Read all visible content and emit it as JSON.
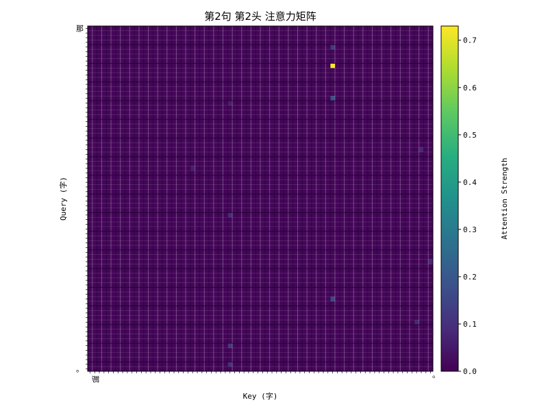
{
  "chart_data": {
    "type": "heatmap",
    "title": "第2句 第2头 注意力矩阵",
    "xlabel": "Key (字)",
    "ylabel": "Query (字)",
    "colorbar": {
      "label": "Attention Strength",
      "colormap": "viridis",
      "range": [
        0.0,
        0.73
      ],
      "ticks": [
        0.0,
        0.1,
        0.2,
        0.3,
        0.4,
        0.5,
        0.6,
        0.7
      ]
    },
    "matrix_size": 74,
    "first_token": "那",
    "last_token": "。",
    "typical_value": 0.01,
    "max_value": 0.73,
    "highlights": [
      {
        "row": 8,
        "col": 52,
        "value": 0.73
      },
      {
        "row": 15,
        "col": 52,
        "value": 0.18
      },
      {
        "row": 4,
        "col": 52,
        "value": 0.12
      },
      {
        "row": 58,
        "col": 52,
        "value": 0.15
      },
      {
        "row": 68,
        "col": 30,
        "value": 0.12
      },
      {
        "row": 72,
        "col": 30,
        "value": 0.1
      },
      {
        "row": 40,
        "col": 30,
        "value": 0.09
      },
      {
        "row": 63,
        "col": 70,
        "value": 0.08
      },
      {
        "row": 26,
        "col": 71,
        "value": 0.08
      },
      {
        "row": 30,
        "col": 22,
        "value": 0.06
      },
      {
        "row": 50,
        "col": 73,
        "value": 0.08
      },
      {
        "row": 16,
        "col": 30,
        "value": 0.06
      }
    ]
  }
}
